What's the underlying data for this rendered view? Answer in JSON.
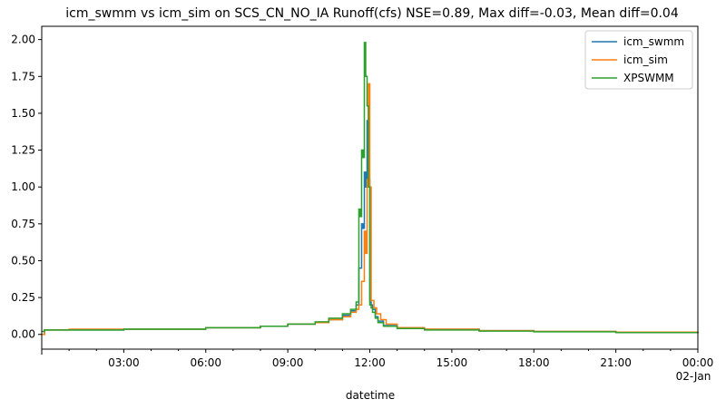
{
  "chart_data": {
    "type": "line",
    "title": "icm_swmm vs icm_sim on SCS_CN_NO_IA Runoff(cfs) NSE=0.89, Max diff=-0.03, Mean diff=0.04",
    "xlabel": "datetime",
    "ylabel": "",
    "x_unit": "hours since 01-Jan 00:00",
    "xlim": [
      0,
      24
    ],
    "ylim": [
      -0.1,
      2.09
    ],
    "y_ticks": [
      0.0,
      0.25,
      0.5,
      0.75,
      1.0,
      1.25,
      1.5,
      1.75,
      2.0
    ],
    "y_tick_labels": [
      "0.00",
      "0.25",
      "0.50",
      "0.75",
      "1.00",
      "1.25",
      "1.50",
      "1.75",
      "2.00"
    ],
    "x_ticks": [
      3,
      6,
      9,
      12,
      15,
      18,
      21,
      24
    ],
    "x_tick_labels": [
      "03:00",
      "06:00",
      "09:00",
      "12:00",
      "15:00",
      "18:00",
      "21:00",
      "00:00"
    ],
    "x_tick_sublabel": "02-Jan",
    "grid": false,
    "legend_position": "top-right",
    "series": [
      {
        "name": "icm_swmm",
        "color": "#1f77b4",
        "x": [
          0.0,
          0.1,
          1.0,
          3.0,
          6.0,
          8.0,
          9.0,
          10.0,
          10.5,
          11.0,
          11.3,
          11.5,
          11.6,
          11.7,
          11.75,
          11.8,
          11.85,
          11.9,
          11.95,
          12.0,
          12.05,
          12.1,
          12.2,
          12.3,
          12.5,
          13.0,
          14.0,
          16.0,
          18.0,
          21.0,
          24.0
        ],
        "y": [
          0.0,
          0.03,
          0.03,
          0.035,
          0.045,
          0.055,
          0.07,
          0.08,
          0.1,
          0.13,
          0.16,
          0.2,
          0.45,
          0.75,
          0.72,
          1.1,
          1.0,
          1.45,
          1.05,
          0.22,
          0.2,
          0.17,
          0.12,
          0.09,
          0.06,
          0.045,
          0.035,
          0.025,
          0.02,
          0.015,
          0.01
        ]
      },
      {
        "name": "icm_sim",
        "color": "#ff7f0e",
        "x": [
          0.0,
          0.1,
          1.0,
          3.0,
          6.0,
          8.0,
          9.0,
          10.0,
          10.5,
          11.0,
          11.3,
          11.5,
          11.6,
          11.7,
          11.8,
          11.85,
          11.9,
          11.95,
          12.0,
          12.05,
          12.1,
          12.15,
          12.25,
          12.4,
          12.6,
          13.0,
          14.0,
          16.0,
          18.0,
          21.0,
          24.0
        ],
        "y": [
          0.0,
          0.03,
          0.035,
          0.035,
          0.045,
          0.055,
          0.07,
          0.08,
          0.1,
          0.12,
          0.15,
          0.17,
          0.2,
          0.36,
          0.7,
          0.55,
          1.05,
          1.7,
          1.0,
          0.23,
          0.23,
          0.18,
          0.14,
          0.1,
          0.07,
          0.045,
          0.035,
          0.025,
          0.02,
          0.015,
          0.01
        ]
      },
      {
        "name": "XPSWMM",
        "color": "#2ca02c",
        "x": [
          0.0,
          0.1,
          1.0,
          3.0,
          6.0,
          8.0,
          9.0,
          10.0,
          10.5,
          11.0,
          11.3,
          11.5,
          11.6,
          11.65,
          11.7,
          11.75,
          11.8,
          11.85,
          11.9,
          11.95,
          12.0,
          12.05,
          12.1,
          12.2,
          12.3,
          12.5,
          13.0,
          14.0,
          16.0,
          18.0,
          21.0,
          24.0
        ],
        "y": [
          0.02,
          0.03,
          0.03,
          0.035,
          0.045,
          0.055,
          0.07,
          0.085,
          0.11,
          0.14,
          0.17,
          0.22,
          0.85,
          0.8,
          1.25,
          1.2,
          1.98,
          1.75,
          1.55,
          1.0,
          0.2,
          0.18,
          0.15,
          0.11,
          0.08,
          0.055,
          0.04,
          0.03,
          0.022,
          0.018,
          0.012,
          0.008
        ]
      }
    ]
  }
}
